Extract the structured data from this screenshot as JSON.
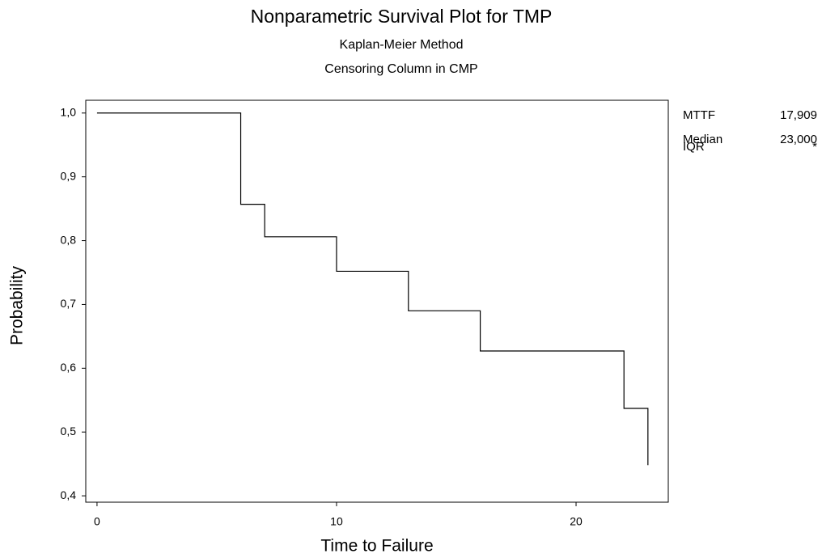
{
  "chart_data": {
    "type": "step",
    "title": "Nonparametric Survival Plot for TMP",
    "subtitles": [
      "Kaplan-Meier Method",
      "Censoring Column in CMP"
    ],
    "xlabel": "Time to Failure",
    "ylabel": "Probability",
    "x": [
      0,
      6,
      7,
      10,
      13,
      16,
      22,
      23
    ],
    "values": [
      1.0,
      0.857,
      0.806,
      0.752,
      0.69,
      0.627,
      0.537,
      0.448
    ],
    "color": "#000000",
    "xlim": [
      -0.47,
      23.85
    ],
    "ylim": [
      0.39,
      1.02
    ],
    "xticks": [
      0,
      10,
      20
    ],
    "yticks": [
      {
        "value": 1.0,
        "label": "1,0"
      },
      {
        "value": 0.9,
        "label": "0,9"
      },
      {
        "value": 0.8,
        "label": "0,8"
      },
      {
        "value": 0.7,
        "label": "0,7"
      },
      {
        "value": 0.6,
        "label": "0,6"
      },
      {
        "value": 0.5,
        "label": "0,5"
      },
      {
        "value": 0.4,
        "label": "0,4"
      }
    ],
    "stats": [
      {
        "label": "MTTF",
        "value": "17,909"
      },
      {
        "label": "Median",
        "value": "23,000"
      },
      {
        "label": "IQR",
        "value": "*"
      }
    ]
  }
}
